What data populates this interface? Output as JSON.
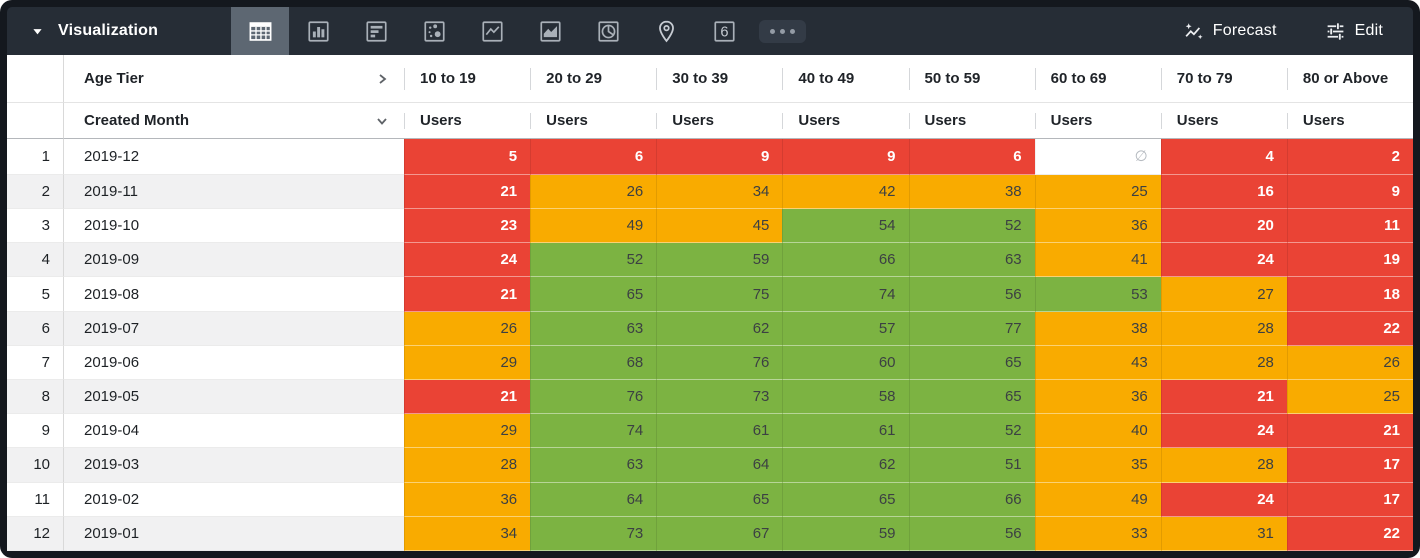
{
  "toolbar": {
    "title": "Visualization",
    "forecast_label": "Forecast",
    "edit_label": "Edit",
    "viz_types": [
      "table",
      "column-chart",
      "bar-chart",
      "scatter",
      "line-chart",
      "area-chart",
      "pie-chart",
      "map",
      "single-value",
      "more"
    ],
    "selected_viz": "table",
    "single_value_glyph": "6"
  },
  "table": {
    "pivot_field_label": "Age Tier",
    "row_field_label": "Created Month",
    "measure_label": "Users",
    "columns": [
      "10 to 19",
      "20 to 29",
      "30 to 39",
      "40 to 49",
      "50 to 59",
      "60 to 69",
      "70 to 79",
      "80 or Above"
    ],
    "null_symbol": "∅",
    "thresholds": {
      "red_below": 25,
      "green_at_least": 50
    },
    "rows": [
      {
        "index": 1,
        "month": "2019-12",
        "values": [
          5,
          6,
          9,
          9,
          6,
          null,
          4,
          2
        ]
      },
      {
        "index": 2,
        "month": "2019-11",
        "values": [
          21,
          26,
          34,
          42,
          38,
          25,
          16,
          9
        ]
      },
      {
        "index": 3,
        "month": "2019-10",
        "values": [
          23,
          49,
          45,
          54,
          52,
          36,
          20,
          11
        ]
      },
      {
        "index": 4,
        "month": "2019-09",
        "values": [
          24,
          52,
          59,
          66,
          63,
          41,
          24,
          19
        ]
      },
      {
        "index": 5,
        "month": "2019-08",
        "values": [
          21,
          65,
          75,
          74,
          56,
          53,
          27,
          18
        ]
      },
      {
        "index": 6,
        "month": "2019-07",
        "values": [
          26,
          63,
          62,
          57,
          77,
          38,
          28,
          22
        ]
      },
      {
        "index": 7,
        "month": "2019-06",
        "values": [
          29,
          68,
          76,
          60,
          65,
          43,
          28,
          26
        ]
      },
      {
        "index": 8,
        "month": "2019-05",
        "values": [
          21,
          76,
          73,
          58,
          65,
          36,
          21,
          25
        ]
      },
      {
        "index": 9,
        "month": "2019-04",
        "values": [
          29,
          74,
          61,
          61,
          52,
          40,
          24,
          21
        ]
      },
      {
        "index": 10,
        "month": "2019-03",
        "values": [
          28,
          63,
          64,
          62,
          51,
          35,
          28,
          17
        ]
      },
      {
        "index": 11,
        "month": "2019-02",
        "values": [
          36,
          64,
          65,
          65,
          66,
          49,
          24,
          17
        ]
      },
      {
        "index": 12,
        "month": "2019-01",
        "values": [
          34,
          73,
          67,
          59,
          56,
          33,
          31,
          22
        ]
      }
    ]
  },
  "colors": {
    "red": "#ea4335",
    "orange": "#f9ab00",
    "green": "#7cb342",
    "toolbar_bg": "#262d36",
    "selected_tab_bg": "#5d6772",
    "frame": "#14181e"
  }
}
